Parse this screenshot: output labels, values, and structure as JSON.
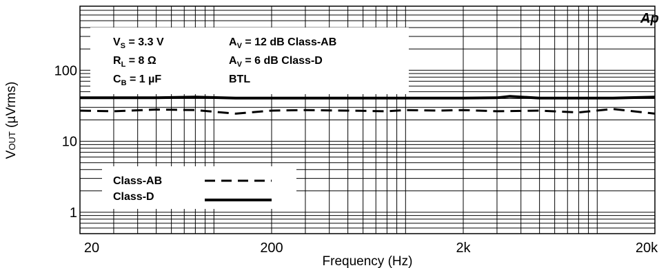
{
  "chart_data": {
    "type": "line",
    "xlabel": "Frequency (Hz)",
    "ylabel_main": "V",
    "ylabel_sub": "OUT",
    "ylabel_unit": " (µVrms)",
    "x_scale": "log",
    "y_scale": "log",
    "xlim": [
      20,
      20000
    ],
    "ylim": [
      0.5,
      800
    ],
    "x_ticks": [
      {
        "value": 20,
        "label": "20"
      },
      {
        "value": 200,
        "label": "200"
      },
      {
        "value": 2000,
        "label": "2k"
      },
      {
        "value": 20000,
        "label": "20k"
      }
    ],
    "y_ticks": [
      {
        "value": 1,
        "label": "1"
      },
      {
        "value": 10,
        "label": "10"
      },
      {
        "value": 100,
        "label": "100"
      }
    ],
    "grid": true,
    "logo": "Ap",
    "conditions": [
      {
        "main": "V",
        "sub": "S",
        "rest": " = 3.3 V"
      },
      {
        "main": "R",
        "sub": "L",
        "rest": " = 8 Ω"
      },
      {
        "main": "C",
        "sub": "B",
        "rest": " = 1 µF"
      },
      {
        "main": "A",
        "sub": "V",
        "rest": " = 12 dB Class-AB"
      },
      {
        "main": "A",
        "sub": "V",
        "rest": " = 6 dB Class-D"
      },
      {
        "main": "BTL",
        "sub": "",
        "rest": ""
      }
    ],
    "legend_position": "bottom-left",
    "series": [
      {
        "name": "Class-AB",
        "style": "dashed",
        "x": [
          20,
          30,
          50,
          80,
          130,
          200,
          300,
          500,
          800,
          1000,
          1500,
          2000,
          3000,
          5000,
          8000,
          12000,
          20000
        ],
        "y": [
          27,
          26.5,
          28,
          27.5,
          24.5,
          27,
          27.5,
          27,
          26.5,
          27.5,
          27,
          27.5,
          26.5,
          27,
          25.5,
          28.5,
          24.5
        ]
      },
      {
        "name": "Class-D",
        "style": "solid",
        "x": [
          20,
          30,
          50,
          80,
          130,
          200,
          300,
          500,
          800,
          1000,
          1500,
          2000,
          3000,
          3500,
          5000,
          8000,
          12000,
          20000
        ],
        "y": [
          41,
          41,
          41,
          42,
          40.5,
          40.5,
          40.5,
          40.5,
          40.5,
          40.5,
          40.5,
          40.5,
          41,
          43,
          40.5,
          40.5,
          40.5,
          42
        ]
      }
    ],
    "colors": {
      "line": "#000000",
      "grid": "#000000",
      "background": "#ffffff"
    }
  }
}
